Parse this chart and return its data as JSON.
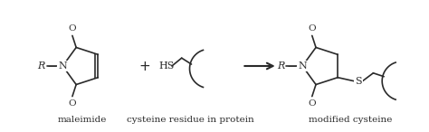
{
  "bg_color": "#ffffff",
  "text_color": "#2a2a2a",
  "label_maleimide": "maleimide",
  "label_cysteine": "cysteine residue in protein",
  "label_modified": "modified cysteine",
  "label_R_left": "R",
  "label_N_left": "N",
  "label_O_top_left": "O",
  "label_O_bot_left": "O",
  "label_plus": "+",
  "label_HS": "HS",
  "label_R_right": "R",
  "label_N_right": "N",
  "label_O_top_right": "O",
  "label_O_bot_right": "O",
  "label_S": "S",
  "arrow_color": "#2a2a2a",
  "line_color": "#2a2a2a",
  "figsize": [
    4.74,
    1.46
  ],
  "dpi": 100
}
